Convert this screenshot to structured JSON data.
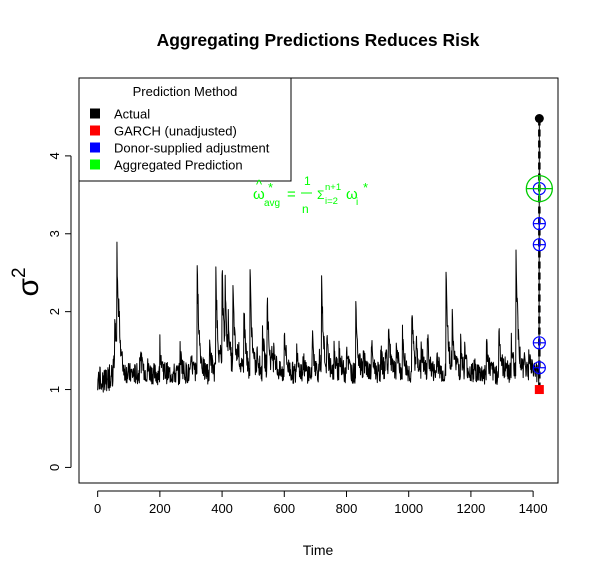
{
  "chart_data": {
    "type": "line",
    "title": "Aggregating Predictions Reduces Risk",
    "xlabel": "Time",
    "ylabel": "σ",
    "ylabel_superscript": "2",
    "xlim": [
      -60,
      1480
    ],
    "ylim": [
      -0.2,
      5.0
    ],
    "xticks": [
      0,
      200,
      400,
      600,
      800,
      1000,
      1200,
      1400
    ],
    "yticks": [
      0,
      1,
      2,
      3,
      4
    ],
    "grid": false,
    "legend": {
      "title": "Prediction Method",
      "placement": "top-left",
      "entries": [
        {
          "label": "Actual",
          "color": "#000000"
        },
        {
          "label": "GARCH (unadjusted)",
          "color": "#ff0000"
        },
        {
          "label": "Donor-supplied adjustment",
          "color": "#0000ff"
        },
        {
          "label": "Aggregated Prediction",
          "color": "#00ff00"
        }
      ]
    },
    "annotation": {
      "omega": "ω",
      "hat": "^",
      "sub_avg": "avg",
      "star": "*",
      "equals": "=",
      "frac_num": "1",
      "frac_den": "n",
      "sigma": "Σ",
      "sum_top": "n+1",
      "sum_bottom": "i=2",
      "omega_i": "ω",
      "sub_i": "i",
      "star_i": "*",
      "color": "#00ff00"
    },
    "series_seed": 7,
    "series_length": 1420,
    "series_baseline": 1.2,
    "series_spikes": [
      [
        55,
        1.9
      ],
      [
        62,
        2.8
      ],
      [
        68,
        2.1
      ],
      [
        120,
        1.2
      ],
      [
        160,
        1.3
      ],
      [
        200,
        1.6
      ],
      [
        220,
        1.2
      ],
      [
        265,
        1.5
      ],
      [
        300,
        1.3
      ],
      [
        320,
        2.6
      ],
      [
        360,
        1.6
      ],
      [
        380,
        2.5
      ],
      [
        400,
        2.6
      ],
      [
        410,
        2.4
      ],
      [
        420,
        2.0
      ],
      [
        435,
        2.3
      ],
      [
        450,
        1.7
      ],
      [
        470,
        2.1
      ],
      [
        490,
        2.5
      ],
      [
        530,
        1.8
      ],
      [
        545,
        2.2
      ],
      [
        560,
        1.5
      ],
      [
        600,
        1.8
      ],
      [
        615,
        1.3
      ],
      [
        640,
        1.6
      ],
      [
        660,
        1.4
      ],
      [
        690,
        1.7
      ],
      [
        720,
        2.4
      ],
      [
        760,
        1.5
      ],
      [
        800,
        1.6
      ],
      [
        830,
        2.1
      ],
      [
        855,
        1.4
      ],
      [
        880,
        1.6
      ],
      [
        910,
        1.5
      ],
      [
        935,
        1.8
      ],
      [
        960,
        1.4
      ],
      [
        980,
        1.7
      ],
      [
        1010,
        2.0
      ],
      [
        1040,
        1.6
      ],
      [
        1060,
        1.7
      ],
      [
        1090,
        1.5
      ],
      [
        1120,
        2.5
      ],
      [
        1140,
        1.9
      ],
      [
        1155,
        1.4
      ],
      [
        1180,
        1.5
      ],
      [
        1210,
        1.3
      ],
      [
        1250,
        1.6
      ],
      [
        1290,
        1.8
      ],
      [
        1310,
        1.4
      ],
      [
        1330,
        1.6
      ],
      [
        1345,
        2.85
      ],
      [
        1370,
        1.4
      ],
      [
        1400,
        1.3
      ]
    ],
    "point_x": 1420,
    "actual": 4.48,
    "garch": 1.0,
    "donor_adjustments": [
      1.28,
      1.6,
      2.86,
      3.13,
      3.58
    ],
    "aggregated": 3.58
  }
}
